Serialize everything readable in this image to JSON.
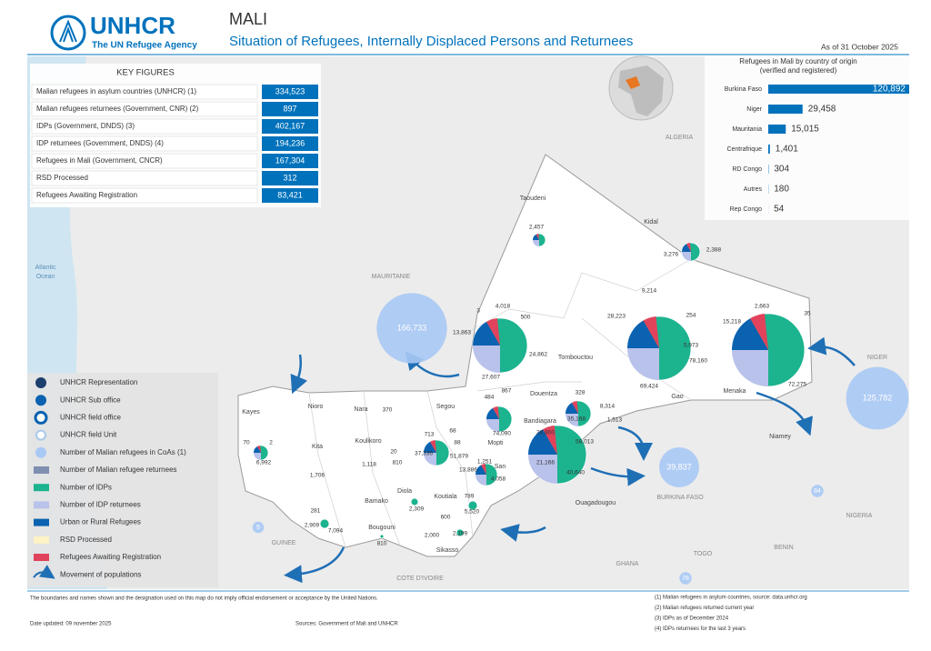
{
  "header": {
    "logo_name": "UNHCR",
    "logo_tagline": "The UN Refugee Agency",
    "title": "MALI",
    "subtitle": "Situation of Refugees, Internally Displaced Persons and Returnees",
    "date": "As of 31 October 2025"
  },
  "key_figures": {
    "title": "KEY FIGURES",
    "rows": [
      [
        "Malian refugees in asylum countries (UNHCR) (1)",
        "334,523"
      ],
      [
        "Malian refugees returnees (Government, CNR) (2)",
        "897"
      ],
      [
        "IDPs (Government, DNDS) (3)",
        "402,167"
      ],
      [
        "IDP returnees (Government, DNDS) (4)",
        "194,236"
      ],
      [
        "Refugees in Mali (Government,  CNCR)",
        "167,304"
      ],
      [
        "RSD Processed",
        "312"
      ],
      [
        "Refugees Awaiting Registration",
        "83,421"
      ]
    ]
  },
  "origin_chart": {
    "type": "bar",
    "title": "Refugees in Mali by country of origin",
    "subtitle": "(verified and registered)",
    "categories": [
      "Burkina Faso",
      "Niger",
      "Mauritania",
      "Centrafrique",
      "RD Congo",
      "Autres",
      "Rep Congo"
    ],
    "values": [
      120892,
      29458,
      15015,
      1401,
      304,
      180,
      54
    ],
    "value_labels": [
      "120,892",
      "29,458",
      "15,015",
      "1,401",
      "304",
      "180",
      "54"
    ],
    "color": "#0072bc"
  },
  "legend": {
    "items": [
      "UNHCR Representation",
      "UNHCR Sub office",
      "UNHCR field office",
      "UNHCR field Unit",
      "Number of Malian refugees in CoAs (1)",
      "Number of Malian refugee returnees",
      "Number of IDPs",
      "Number of IDP returnees",
      "Urban or Rural Refugees",
      "RSD Processed",
      "Refugees Awaiting Registration",
      "Movement of populations"
    ]
  },
  "map": {
    "countries": [
      "ALGERIA",
      "MAURITANIE",
      "NIGER",
      "BURKINA FASO",
      "NIGERIA",
      "BENIN",
      "TOGO",
      "GHANA",
      "COTE D'IVOIRE",
      "GUINEE"
    ],
    "ocean": [
      "Atlantic",
      "Ocean"
    ],
    "places": [
      "Taoudeni",
      "Kidal",
      "Tombouctou",
      "Gao",
      "Menaka",
      "Douentza",
      "Bandiagara",
      "Mopti",
      "San",
      "Segou",
      "Nioro",
      "Nara",
      "Kayes",
      "Kita",
      "Koulikoro",
      "Bamako",
      "Diola",
      "Koutiala",
      "Bougouni",
      "Sikasso",
      "Niamey",
      "Ouagadougou"
    ],
    "figures": [
      "2,457",
      "3,276",
      "2,388",
      "9,214",
      "28,223",
      "254",
      "5,973",
      "78,160",
      "69,424",
      "2,663",
      "15,218",
      "35",
      "72,275",
      "4,018",
      "3",
      "500",
      "13,863",
      "24,862",
      "27,607",
      "484",
      "867",
      "74,090",
      "328",
      "8,314",
      "1,513",
      "35,168",
      "26,800",
      "58,013",
      "21,166",
      "40,640",
      "370",
      "713",
      "68",
      "88",
      "37,336",
      "51,879",
      "1,251",
      "13,886",
      "4,058",
      "20",
      "810",
      "1,118",
      "70",
      "2",
      "6,992",
      "1,706",
      "281",
      "2,909",
      "7,094",
      "2,309",
      "789",
      "5,520",
      "600",
      "2,000",
      "2,199",
      "810"
    ],
    "bubbles": {
      "values": [
        166733,
        125782,
        39837,
        84,
        78,
        9
      ],
      "value_labels": [
        "166,733",
        "125,782",
        "39,837",
        "84",
        "78",
        "9"
      ]
    }
  },
  "footer": {
    "disclaimer": "The boundaries and names shown and the designation used on this map do not imply official endorsement or acceptance by the United Nations.",
    "date": "Date updated: 09 november 2025",
    "sources": "Sources: Government of Mali and UNHCR",
    "notes": [
      "(1) Malian refugees in asylum countries, source: data.unhcr.org",
      "(2) Malian refugees returned current year",
      "(3) IDPs as of December 2024",
      "(4) IDPs returnees for the last 3 years"
    ]
  }
}
